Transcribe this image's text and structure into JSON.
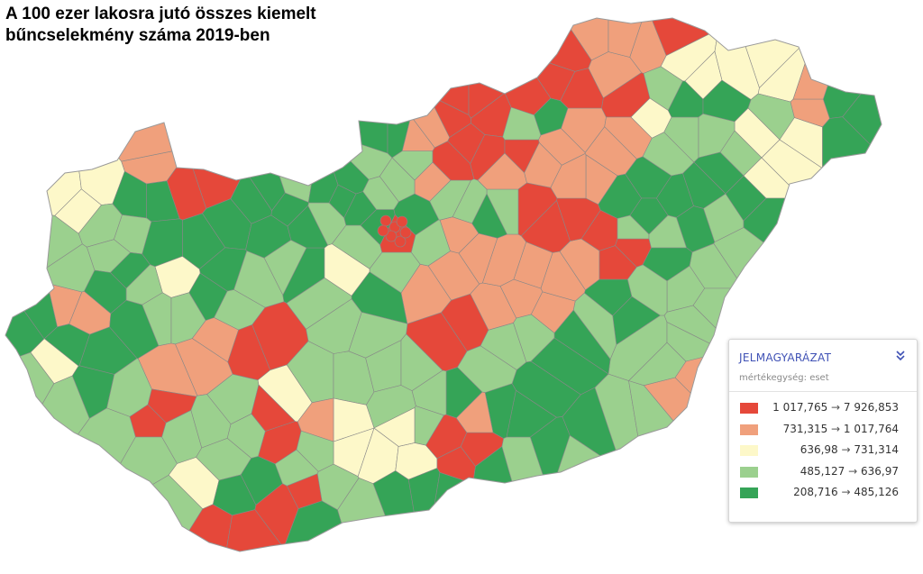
{
  "title": {
    "line1": "A 100 ezer lakosra jutó összes kiemelt",
    "line2": "bűncselekmény száma 2019-ben"
  },
  "colors": {
    "class1": "#e5483a",
    "class2": "#f0a07c",
    "class3": "#fdf8c9",
    "class4": "#9bd08e",
    "class5": "#35a457",
    "border": "#888888",
    "accent": "#3f51b5"
  },
  "legend": {
    "title": "JELMAGYARÁZAT",
    "toggle_icon": "chevron-double-down-icon",
    "unit": "mértékegység: eset",
    "classes": [
      {
        "from": "1 017,765",
        "to": "7 926,853",
        "color": "#e5483a"
      },
      {
        "from": "731,315",
        "to": "1 017,764",
        "color": "#f0a07c"
      },
      {
        "from": "636,98",
        "to": "731,314",
        "color": "#fdf8c9"
      },
      {
        "from": "485,127",
        "to": "636,97",
        "color": "#9bd08e"
      },
      {
        "from": "208,716",
        "to": "485,126",
        "color": "#35a457"
      }
    ]
  },
  "map_data": {
    "type": "choropleth",
    "region": "Hungary – districts",
    "value_classes": 5
  }
}
